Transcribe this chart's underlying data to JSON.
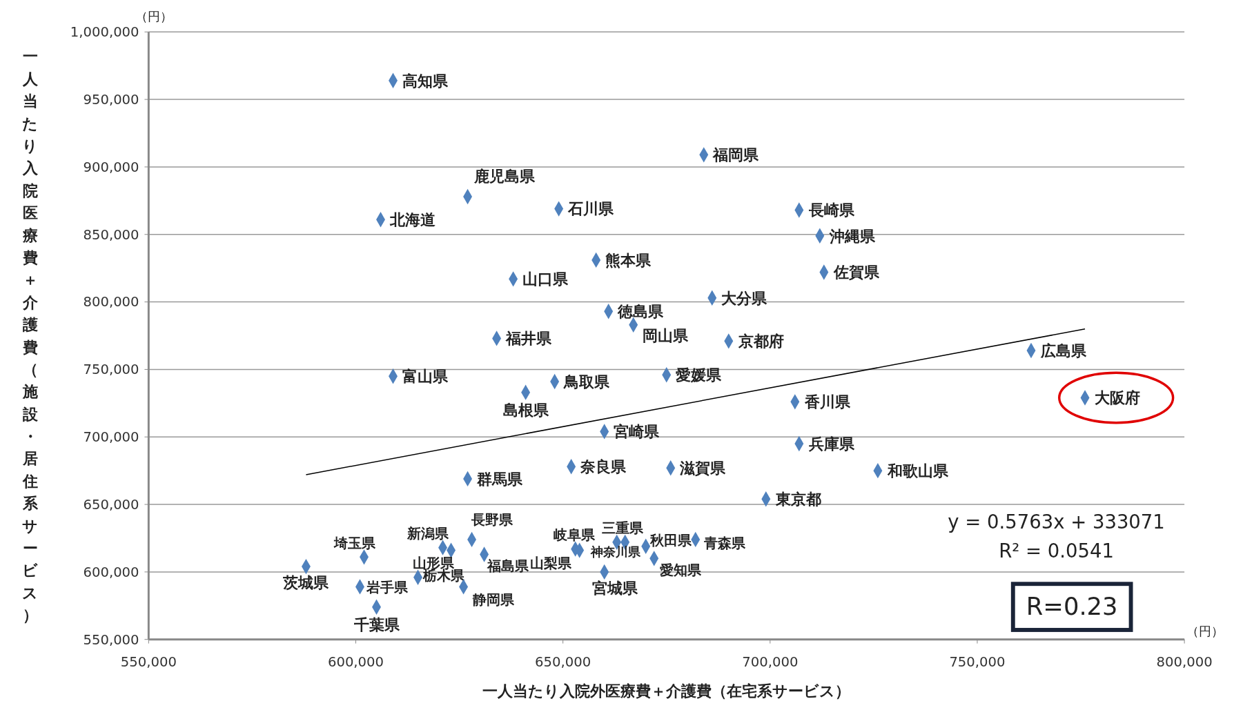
{
  "chart_data": {
    "type": "scatter",
    "xlabel": "一人当たり入院外医療費＋介護費（在宅系サービス）",
    "ylabel": "一人当たり入院医療費＋介護費（施設・居住系サービス）",
    "xlim": [
      550000,
      800000
    ],
    "ylim": [
      550000,
      1000000
    ],
    "xticks": [
      {
        "value": 550000,
        "label": "550,000"
      },
      {
        "value": 600000,
        "label": "600,000"
      },
      {
        "value": 650000,
        "label": "650,000"
      },
      {
        "value": 700000,
        "label": "700,000"
      },
      {
        "value": 750000,
        "label": "750,000"
      },
      {
        "value": 800000,
        "label": "800,000"
      }
    ],
    "yticks": [
      {
        "value": 550000,
        "label": "550,000"
      },
      {
        "value": 600000,
        "label": "600,000"
      },
      {
        "value": 650000,
        "label": "650,000"
      },
      {
        "value": 700000,
        "label": "700,000"
      },
      {
        "value": 750000,
        "label": "750,000"
      },
      {
        "value": 800000,
        "label": "800,000"
      },
      {
        "value": 850000,
        "label": "850,000"
      },
      {
        "value": 900000,
        "label": "900,000"
      },
      {
        "value": 950000,
        "label": "950,000"
      },
      {
        "value": 1000000,
        "label": "1,000,000"
      }
    ],
    "grid": "y",
    "legend": false,
    "marker": "diamond",
    "annotations": [
      "（円）",
      "（円）",
      "y = 0.5763x + 333071",
      "R² = 0.0541",
      "R=0.23"
    ],
    "series": [
      {
        "name": "高知県",
        "color": "#4f81bd",
        "x": [
          609000
        ],
        "values": [
          964000
        ]
      },
      {
        "name": "福岡県",
        "color": "#4f81bd",
        "x": [
          684000
        ],
        "values": [
          909000
        ]
      },
      {
        "name": "鹿児島県",
        "color": "#4f81bd",
        "x": [
          627000
        ],
        "values": [
          878000
        ]
      },
      {
        "name": "石川県",
        "color": "#4f81bd",
        "x": [
          649000
        ],
        "values": [
          869000
        ]
      },
      {
        "name": "北海道",
        "color": "#4f81bd",
        "x": [
          606000
        ],
        "values": [
          861000
        ]
      },
      {
        "name": "長崎県",
        "color": "#4f81bd",
        "x": [
          707000
        ],
        "values": [
          868000
        ]
      },
      {
        "name": "沖縄県",
        "color": "#4f81bd",
        "x": [
          712000
        ],
        "values": [
          849000
        ]
      },
      {
        "name": "佐賀県",
        "color": "#4f81bd",
        "x": [
          713000
        ],
        "values": [
          822000
        ]
      },
      {
        "name": "熊本県",
        "color": "#4f81bd",
        "x": [
          658000
        ],
        "values": [
          831000
        ]
      },
      {
        "name": "山口県",
        "color": "#4f81bd",
        "x": [
          638000
        ],
        "values": [
          817000
        ]
      },
      {
        "name": "大分県",
        "color": "#4f81bd",
        "x": [
          686000
        ],
        "values": [
          803000
        ]
      },
      {
        "name": "徳島県",
        "color": "#4f81bd",
        "x": [
          661000
        ],
        "values": [
          793000
        ]
      },
      {
        "name": "岡山県",
        "color": "#4f81bd",
        "x": [
          667000
        ],
        "values": [
          783000
        ]
      },
      {
        "name": "福井県",
        "color": "#4f81bd",
        "x": [
          634000
        ],
        "values": [
          773000
        ]
      },
      {
        "name": "京都府",
        "color": "#4f81bd",
        "x": [
          690000
        ],
        "values": [
          771000
        ]
      },
      {
        "name": "広島県",
        "color": "#4f81bd",
        "x": [
          763000
        ],
        "values": [
          764000
        ]
      },
      {
        "name": "富山県",
        "color": "#4f81bd",
        "x": [
          609000
        ],
        "values": [
          745000
        ]
      },
      {
        "name": "愛媛県",
        "color": "#4f81bd",
        "x": [
          675000
        ],
        "values": [
          746000
        ]
      },
      {
        "name": "鳥取県",
        "color": "#4f81bd",
        "x": [
          648000
        ],
        "values": [
          741000
        ]
      },
      {
        "name": "島根県",
        "color": "#4f81bd",
        "x": [
          641000
        ],
        "values": [
          733000
        ]
      },
      {
        "name": "香川県",
        "color": "#4f81bd",
        "x": [
          706000
        ],
        "values": [
          726000
        ]
      },
      {
        "name": "大阪府",
        "color": "#4f81bd",
        "x": [
          776000
        ],
        "values": [
          729000
        ]
      },
      {
        "name": "宮崎県",
        "color": "#4f81bd",
        "x": [
          660000
        ],
        "values": [
          704000
        ]
      },
      {
        "name": "兵庫県",
        "color": "#4f81bd",
        "x": [
          707000
        ],
        "values": [
          695000
        ]
      },
      {
        "name": "群馬県",
        "color": "#4f81bd",
        "x": [
          627000
        ],
        "values": [
          669000
        ]
      },
      {
        "name": "奈良県",
        "color": "#4f81bd",
        "x": [
          652000
        ],
        "values": [
          678000
        ]
      },
      {
        "name": "滋賀県",
        "color": "#4f81bd",
        "x": [
          676000
        ],
        "values": [
          677000
        ]
      },
      {
        "name": "和歌山県",
        "color": "#4f81bd",
        "x": [
          726000
        ],
        "values": [
          675000
        ]
      },
      {
        "name": "東京都",
        "color": "#4f81bd",
        "x": [
          699000
        ],
        "values": [
          654000
        ]
      },
      {
        "name": "茨城県",
        "color": "#4f81bd",
        "x": [
          588000
        ],
        "values": [
          604000
        ]
      },
      {
        "name": "埼玉県",
        "color": "#4f81bd",
        "x": [
          602000
        ],
        "values": [
          611000
        ]
      },
      {
        "name": "岩手県",
        "color": "#4f81bd",
        "x": [
          601000
        ],
        "values": [
          589000
        ]
      },
      {
        "name": "千葉県",
        "color": "#4f81bd",
        "x": [
          605000
        ],
        "values": [
          574000
        ]
      },
      {
        "name": "栃木県",
        "color": "#4f81bd",
        "x": [
          615000
        ],
        "values": [
          596000
        ]
      },
      {
        "name": "新潟県",
        "color": "#4f81bd",
        "x": [
          621000
        ],
        "values": [
          618000
        ]
      },
      {
        "name": "山形県",
        "color": "#4f81bd",
        "x": [
          623000
        ],
        "values": [
          616000
        ]
      },
      {
        "name": "長野県",
        "color": "#4f81bd",
        "x": [
          628000
        ],
        "values": [
          624000
        ]
      },
      {
        "name": "福島県",
        "color": "#4f81bd",
        "x": [
          631000
        ],
        "values": [
          613000
        ]
      },
      {
        "name": "静岡県",
        "color": "#4f81bd",
        "x": [
          626000
        ],
        "values": [
          589000
        ]
      },
      {
        "name": "岐阜県",
        "color": "#4f81bd",
        "x": [
          653000
        ],
        "values": [
          617000
        ]
      },
      {
        "name": "山梨県",
        "color": "#4f81bd",
        "x": [
          654000
        ],
        "values": [
          616000
        ]
      },
      {
        "name": "三重県",
        "color": "#4f81bd",
        "x": [
          663000
        ],
        "values": [
          622000
        ]
      },
      {
        "name": "神奈川県",
        "color": "#4f81bd",
        "x": [
          665000
        ],
        "values": [
          622000
        ]
      },
      {
        "name": "宮城県",
        "color": "#4f81bd",
        "x": [
          660000
        ],
        "values": [
          600000
        ]
      },
      {
        "name": "秋田県",
        "color": "#4f81bd",
        "x": [
          670000
        ],
        "values": [
          619000
        ]
      },
      {
        "name": "愛知県",
        "color": "#4f81bd",
        "x": [
          672000
        ],
        "values": [
          610000
        ]
      },
      {
        "name": "青森県",
        "color": "#4f81bd",
        "x": [
          682000
        ],
        "values": [
          624000
        ]
      },
      {
        "type": "line",
        "color": "#000000",
        "marker": "none",
        "x": [
          588000,
          776000
        ],
        "values": [
          672000,
          780000
        ]
      }
    ]
  }
}
